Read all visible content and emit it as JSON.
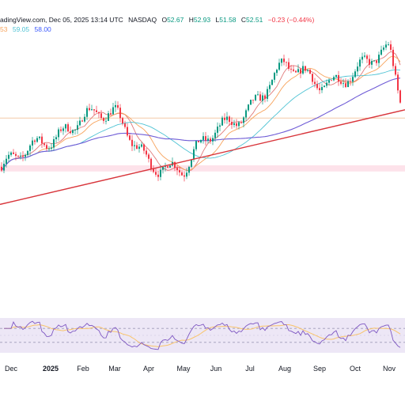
{
  "header": {
    "source": "adingView.com, Dec 05, 2025 13:14 UTC",
    "exchange": "NASDAQ",
    "open_label": "O",
    "open": "52.67",
    "high_label": "H",
    "high": "52.93",
    "low_label": "L",
    "low": "51.58",
    "close_label": "C",
    "close": "52.51",
    "change": "−0.23 (−0.44%)",
    "ma1": "53",
    "ma2": "59.05",
    "ma3": "58.00"
  },
  "colors": {
    "up": "#089981",
    "down": "#f23645",
    "ma_orange": "#f7a35c",
    "ma_cyan": "#4fc3d4",
    "ma_purple": "#6f5cd6",
    "ma_red": "#e07a7a",
    "trendline": "#d8353b",
    "zone": "#fde2ea",
    "rsi_band": "#ede7f6",
    "rsi_line": "#7e57c2",
    "rsi_ma": "#f9c46b"
  },
  "chart_data": {
    "type": "candlestick",
    "x_labels": [
      "Dec",
      "2025",
      "Feb",
      "Mar",
      "Apr",
      "May",
      "Jun",
      "Jul",
      "Aug",
      "Sep",
      "Oct",
      "Nov"
    ],
    "y_range": [
      40,
      90
    ],
    "rsi_range": [
      0,
      100
    ],
    "rsi_levels": [
      70,
      30
    ],
    "months": [
      {
        "label": "Dec",
        "start": 58,
        "end": 64
      },
      {
        "label": "2025",
        "start": 64,
        "end": 70
      },
      {
        "label": "Feb",
        "start": 70,
        "end": 69
      },
      {
        "label": "Mar",
        "start": 69,
        "end": 59
      },
      {
        "label": "Apr",
        "start": 59,
        "end": 56
      },
      {
        "label": "May",
        "start": 56,
        "end": 66
      },
      {
        "label": "Jun",
        "start": 66,
        "end": 72
      },
      {
        "label": "Jul",
        "start": 72,
        "end": 81
      },
      {
        "label": "Aug",
        "start": 81,
        "end": 78
      },
      {
        "label": "Sep",
        "start": 78,
        "end": 80
      },
      {
        "label": "Oct",
        "start": 80,
        "end": 85
      },
      {
        "label": "Nov",
        "start": 85,
        "end": 70
      }
    ],
    "trendline": [
      {
        "x": "Oct 2024",
        "y": 48
      },
      {
        "x": "Dec 2025",
        "y": 71
      }
    ],
    "support_zone": [
      56,
      57.5
    ],
    "horizontal_line": 69
  }
}
